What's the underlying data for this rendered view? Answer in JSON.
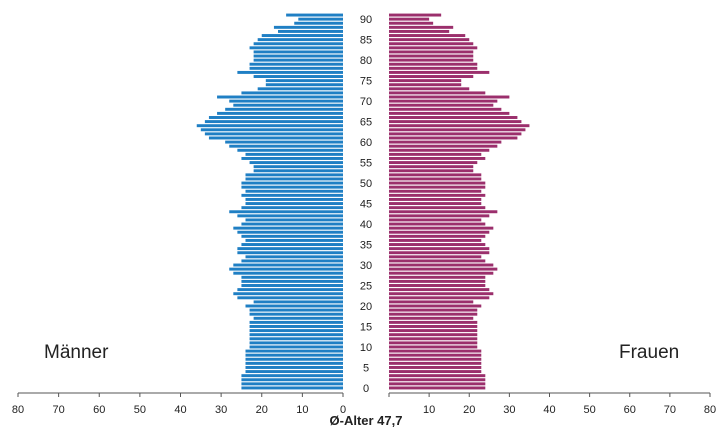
{
  "chart_data": {
    "type": "bar",
    "orientation": "horizontal",
    "xlabel": "Ø-Alter 47,7",
    "ylabel": "",
    "xlim": [
      0,
      80
    ],
    "x_ticks": [
      "80",
      "70",
      "60",
      "50",
      "40",
      "30",
      "20",
      "10",
      "0",
      "10",
      "20",
      "30",
      "40",
      "50",
      "60",
      "70",
      "80"
    ],
    "age_ticks": [
      "0",
      "5",
      "10",
      "15",
      "20",
      "25",
      "30",
      "35",
      "40",
      "45",
      "50",
      "55",
      "60",
      "65",
      "70",
      "75",
      "80",
      "85",
      "90"
    ],
    "ages": [
      0,
      1,
      2,
      3,
      4,
      5,
      6,
      7,
      8,
      9,
      10,
      11,
      12,
      13,
      14,
      15,
      16,
      17,
      18,
      19,
      20,
      21,
      22,
      23,
      24,
      25,
      26,
      27,
      28,
      29,
      30,
      31,
      32,
      33,
      34,
      35,
      36,
      37,
      38,
      39,
      40,
      41,
      42,
      43,
      44,
      45,
      46,
      47,
      48,
      49,
      50,
      51,
      52,
      53,
      54,
      55,
      56,
      57,
      58,
      59,
      60,
      61,
      62,
      63,
      64,
      65,
      66,
      67,
      68,
      69,
      70,
      71,
      72,
      73,
      74,
      75,
      76,
      77,
      78,
      79,
      80,
      81,
      82,
      83,
      84,
      85,
      86,
      87,
      88,
      89,
      90,
      91
    ],
    "series": [
      {
        "name": "Männer",
        "color": "#1f7fc4",
        "values": [
          25,
          25,
          25,
          25,
          24,
          24,
          24,
          24,
          24,
          24,
          23,
          23,
          23,
          23,
          23,
          23,
          23,
          22,
          23,
          23,
          24,
          22,
          26,
          27,
          26,
          25,
          25,
          25,
          27,
          28,
          27,
          25,
          24,
          26,
          26,
          25,
          24,
          25,
          26,
          27,
          25,
          24,
          26,
          28,
          25,
          24,
          24,
          25,
          24,
          25,
          25,
          24,
          24,
          22,
          22,
          23,
          25,
          24,
          26,
          28,
          29,
          33,
          34,
          35,
          36,
          34,
          33,
          31,
          29,
          27,
          28,
          31,
          25,
          21,
          19,
          19,
          22,
          26,
          23,
          23,
          22,
          22,
          22,
          23,
          22,
          21,
          20,
          16,
          17,
          12,
          11,
          14
        ]
      },
      {
        "name": "Frauen",
        "color": "#9b2f6c",
        "values": [
          24,
          24,
          24,
          24,
          23,
          23,
          23,
          23,
          23,
          23,
          22,
          22,
          22,
          22,
          22,
          22,
          22,
          21,
          22,
          22,
          23,
          21,
          25,
          26,
          25,
          24,
          24,
          24,
          26,
          27,
          26,
          24,
          23,
          25,
          25,
          24,
          23,
          24,
          25,
          26,
          24,
          23,
          25,
          27,
          24,
          23,
          23,
          24,
          23,
          24,
          24,
          23,
          23,
          21,
          21,
          22,
          24,
          23,
          25,
          27,
          28,
          32,
          33,
          34,
          35,
          33,
          32,
          30,
          28,
          26,
          27,
          30,
          24,
          20,
          18,
          18,
          21,
          25,
          22,
          22,
          21,
          21,
          21,
          22,
          21,
          20,
          19,
          15,
          16,
          11,
          10,
          13
        ]
      }
    ],
    "grid": false
  },
  "labels": {
    "left_side": "Männer",
    "right_side": "Frauen"
  }
}
